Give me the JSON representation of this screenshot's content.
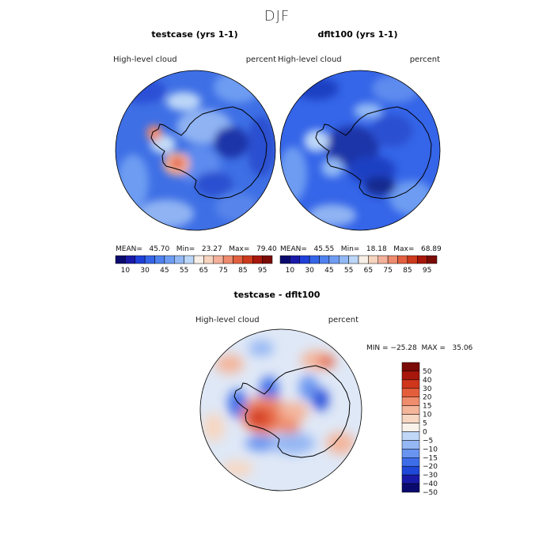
{
  "chart_data": {
    "type": "heatmap",
    "season": "DJF",
    "panels": [
      {
        "title": "testcase (yrs 1-1)",
        "variable": "High-level cloud",
        "units": "percent",
        "stats_text": "MEAN=   45.70   Min=   23.27   Max=   79.40",
        "mean": 45.7,
        "min": 23.27,
        "max": 79.4,
        "colorbar_ticks": [
          "10",
          "30",
          "45",
          "55",
          "65",
          "75",
          "85",
          "95"
        ],
        "levels": [
          5,
          10,
          20,
          30,
          40,
          45,
          50,
          55,
          60,
          65,
          70,
          75,
          80,
          85,
          90,
          95
        ]
      },
      {
        "title": "dflt100 (yrs 1-1)",
        "variable": "High-level cloud",
        "units": "percent",
        "stats_text": "MEAN=   45.55   Min=   18.18   Max=   68.89",
        "mean": 45.55,
        "min": 18.18,
        "max": 68.89,
        "colorbar_ticks": [
          "10",
          "30",
          "45",
          "55",
          "65",
          "75",
          "85",
          "95"
        ],
        "levels": [
          5,
          10,
          20,
          30,
          40,
          45,
          50,
          55,
          60,
          65,
          70,
          75,
          80,
          85,
          90,
          95
        ]
      },
      {
        "title": "testcase - dflt100",
        "variable": "High-level cloud",
        "units": "percent",
        "stats_text": "MIN = −25.28  MAX =   35.06",
        "min": -25.28,
        "max": 35.06,
        "colorbar_ticks": [
          "50",
          "40",
          "30",
          "20",
          "15",
          "10",
          "5",
          "0",
          "−5",
          "−10",
          "−15",
          "−20",
          "−30",
          "−40",
          "−50"
        ],
        "levels": [
          -50,
          -40,
          -30,
          -20,
          -15,
          -10,
          -5,
          0,
          5,
          10,
          15,
          20,
          30,
          40,
          50
        ]
      }
    ],
    "colors": {
      "abs_scale": [
        "#0a0a6e",
        "#1a1aa8",
        "#2040d8",
        "#3565e8",
        "#4f82ee",
        "#6d9cf2",
        "#92b9f5",
        "#bcd6f8",
        "#f8efe6",
        "#f7d4bf",
        "#f4b09a",
        "#ee8a6e",
        "#e2603f",
        "#cd3a1d",
        "#a8170b",
        "#7a0b06"
      ],
      "diff_scale": [
        "#0a0a6e",
        "#1a1aa8",
        "#2048d8",
        "#3e6de8",
        "#6994f0",
        "#95b7f4",
        "#c1d7f8",
        "#f8f2ea",
        "#f7d7c2",
        "#f4b59b",
        "#ee8c6c",
        "#e45e3c",
        "#cf361c",
        "#a8170b",
        "#7a0b06"
      ]
    }
  }
}
